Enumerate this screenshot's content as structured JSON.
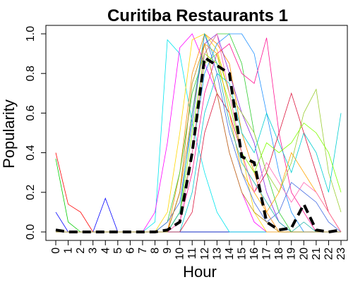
{
  "chart_data": {
    "type": "line",
    "title": "Curitiba Restaurants 1",
    "xlabel": "Hour",
    "ylabel": "Popularity",
    "xlim": [
      0,
      23
    ],
    "ylim": [
      0,
      1
    ],
    "x_ticks": [
      "0",
      "1",
      "2",
      "3",
      "4",
      "5",
      "6",
      "7",
      "8",
      "9",
      "10",
      "11",
      "12",
      "13",
      "14",
      "15",
      "16",
      "17",
      "18",
      "19",
      "20",
      "21",
      "22",
      "23"
    ],
    "y_ticks": [
      "0.0",
      "0.2",
      "0.4",
      "0.6",
      "0.8",
      "1.0"
    ],
    "grid": false,
    "legend": "none",
    "x": [
      0,
      1,
      2,
      3,
      4,
      5,
      6,
      7,
      8,
      9,
      10,
      11,
      12,
      13,
      14,
      15,
      16,
      17,
      18,
      19,
      20,
      21,
      22,
      23
    ],
    "mean_series": {
      "color": "#000000",
      "style": "dashed",
      "values": [
        0.01,
        0.0,
        0.0,
        0.0,
        0.0,
        0.0,
        0.0,
        0.0,
        0.0,
        0.01,
        0.05,
        0.4,
        0.88,
        0.84,
        0.8,
        0.38,
        0.35,
        0.05,
        0.01,
        0.02,
        0.14,
        0.01,
        0.0,
        0.01
      ]
    },
    "series": [
      {
        "values": [
          0.4,
          0.14,
          0.1,
          0.0,
          0.0,
          0.0,
          0.0,
          0.0,
          0.0,
          0.0,
          0.0,
          0.0,
          0.0,
          0.0,
          0.0,
          0.0,
          0.0,
          0.0,
          0.0,
          0.0,
          0.0,
          0.0,
          0.0,
          0.0
        ]
      },
      {
        "values": [
          0.37,
          0.05,
          0.0,
          0.0,
          0.0,
          0.0,
          0.0,
          0.0,
          0.0,
          0.0,
          0.0,
          0.0,
          0.0,
          0.0,
          0.0,
          0.0,
          0.0,
          0.0,
          0.0,
          0.0,
          0.0,
          0.0,
          0.0,
          0.0
        ]
      },
      {
        "values": [
          0.1,
          0.0,
          0.0,
          0.0,
          0.17,
          0.0,
          0.0,
          0.0,
          0.0,
          0.0,
          0.0,
          0.0,
          0.0,
          0.0,
          0.0,
          0.0,
          0.0,
          0.0,
          0.0,
          0.0,
          0.0,
          0.0,
          0.0,
          0.0
        ]
      },
      {
        "values": [
          0.0,
          0.0,
          0.0,
          0.0,
          0.0,
          0.0,
          0.0,
          0.0,
          0.05,
          0.97,
          0.9,
          0.55,
          0.3,
          0.1,
          0.0,
          0.0,
          0.0,
          0.0,
          0.0,
          0.0,
          0.0,
          0.0,
          0.0,
          0.0
        ]
      },
      {
        "values": [
          0.0,
          0.0,
          0.0,
          0.0,
          0.0,
          0.0,
          0.0,
          0.0,
          0.1,
          0.45,
          0.93,
          1.0,
          0.85,
          0.7,
          0.4,
          0.2,
          0.05,
          0.0,
          0.0,
          0.0,
          0.0,
          0.0,
          0.0,
          0.0
        ]
      },
      {
        "values": [
          0.0,
          0.0,
          0.0,
          0.0,
          0.0,
          0.0,
          0.0,
          0.0,
          0.0,
          0.1,
          0.5,
          0.97,
          1.0,
          0.92,
          0.7,
          0.4,
          0.1,
          0.0,
          0.0,
          0.0,
          0.0,
          0.0,
          0.0,
          0.0
        ]
      },
      {
        "values": [
          0.0,
          0.0,
          0.0,
          0.0,
          0.0,
          0.0,
          0.0,
          0.0,
          0.0,
          0.0,
          0.3,
          0.8,
          1.0,
          0.95,
          0.85,
          0.5,
          0.3,
          0.1,
          0.0,
          0.0,
          0.0,
          0.0,
          0.0,
          0.0
        ]
      },
      {
        "values": [
          0.0,
          0.0,
          0.0,
          0.0,
          0.0,
          0.0,
          0.0,
          0.0,
          0.0,
          0.0,
          0.2,
          0.6,
          0.95,
          1.0,
          0.8,
          0.6,
          0.45,
          0.2,
          0.05,
          0.0,
          0.0,
          0.0,
          0.0,
          0.0
        ]
      },
      {
        "values": [
          0.0,
          0.0,
          0.0,
          0.0,
          0.0,
          0.0,
          0.0,
          0.0,
          0.0,
          0.05,
          0.3,
          0.7,
          0.9,
          1.0,
          1.0,
          0.85,
          0.5,
          0.3,
          0.1,
          0.0,
          0.0,
          0.0,
          0.0,
          0.0
        ]
      },
      {
        "values": [
          0.0,
          0.0,
          0.0,
          0.0,
          0.0,
          0.0,
          0.0,
          0.0,
          0.0,
          0.0,
          0.1,
          0.4,
          0.8,
          0.95,
          1.0,
          1.0,
          0.9,
          0.6,
          0.3,
          0.1,
          0.0,
          0.0,
          0.0,
          0.0
        ]
      },
      {
        "values": [
          0.0,
          0.0,
          0.0,
          0.0,
          0.0,
          0.0,
          0.0,
          0.0,
          0.0,
          0.0,
          0.05,
          0.3,
          0.7,
          0.9,
          0.95,
          0.8,
          0.75,
          0.98,
          0.5,
          0.2,
          0.1,
          0.0,
          0.0,
          0.0
        ]
      },
      {
        "values": [
          0.0,
          0.0,
          0.0,
          0.0,
          0.0,
          0.0,
          0.0,
          0.0,
          0.0,
          0.0,
          0.1,
          0.4,
          0.85,
          0.9,
          0.7,
          0.6,
          0.5,
          0.3,
          0.2,
          0.35,
          0.6,
          0.72,
          0.3,
          0.1
        ]
      },
      {
        "values": [
          0.0,
          0.0,
          0.0,
          0.0,
          0.0,
          0.0,
          0.0,
          0.0,
          0.0,
          0.0,
          0.0,
          0.2,
          0.6,
          0.8,
          0.75,
          0.5,
          0.4,
          0.6,
          0.45,
          0.3,
          0.5,
          0.4,
          0.2,
          0.6
        ]
      },
      {
        "values": [
          0.0,
          0.0,
          0.0,
          0.0,
          0.0,
          0.0,
          0.0,
          0.0,
          0.0,
          0.0,
          0.0,
          0.1,
          0.5,
          0.7,
          0.6,
          0.4,
          0.2,
          0.3,
          0.5,
          0.7,
          0.5,
          0.3,
          0.1,
          0.0
        ]
      },
      {
        "values": [
          0.0,
          0.0,
          0.0,
          0.0,
          0.0,
          0.0,
          0.0,
          0.0,
          0.0,
          0.0,
          0.1,
          0.5,
          0.9,
          0.85,
          0.65,
          0.4,
          0.3,
          0.45,
          0.4,
          0.45,
          0.55,
          0.5,
          0.4,
          0.2
        ]
      },
      {
        "values": [
          0.0,
          0.0,
          0.0,
          0.0,
          0.0,
          0.0,
          0.0,
          0.0,
          0.0,
          0.0,
          0.2,
          0.6,
          0.95,
          0.9,
          0.6,
          0.3,
          0.2,
          0.1,
          0.2,
          0.4,
          0.3,
          0.2,
          0.1,
          0.0
        ]
      },
      {
        "values": [
          0.0,
          0.0,
          0.0,
          0.0,
          0.0,
          0.0,
          0.0,
          0.0,
          0.0,
          0.05,
          0.15,
          0.55,
          1.0,
          0.8,
          0.5,
          0.3,
          0.15,
          0.05,
          0.1,
          0.25,
          0.2,
          0.15,
          0.05,
          0.0
        ]
      },
      {
        "values": [
          0.0,
          0.0,
          0.0,
          0.0,
          0.0,
          0.0,
          0.0,
          0.0,
          0.0,
          0.0,
          0.05,
          0.4,
          0.9,
          1.0,
          0.7,
          0.4,
          0.2,
          0.35,
          0.25,
          0.15,
          0.25,
          0.2,
          0.1,
          0.0
        ]
      },
      {
        "values": [
          0.0,
          0.0,
          0.0,
          0.0,
          0.0,
          0.0,
          0.0,
          0.0,
          0.0,
          0.0,
          0.1,
          0.6,
          1.0,
          0.85,
          0.55,
          0.35,
          0.25,
          0.15,
          0.05,
          0.0,
          0.05,
          0.0,
          0.0,
          0.0
        ]
      },
      {
        "values": [
          0.0,
          0.0,
          0.0,
          0.0,
          0.0,
          0.0,
          0.0,
          0.0,
          0.0,
          0.0,
          0.2,
          0.75,
          0.95,
          0.7,
          0.4,
          0.2,
          0.1,
          0.05,
          0.0,
          0.0,
          0.0,
          0.0,
          0.0,
          0.0
        ]
      }
    ]
  }
}
